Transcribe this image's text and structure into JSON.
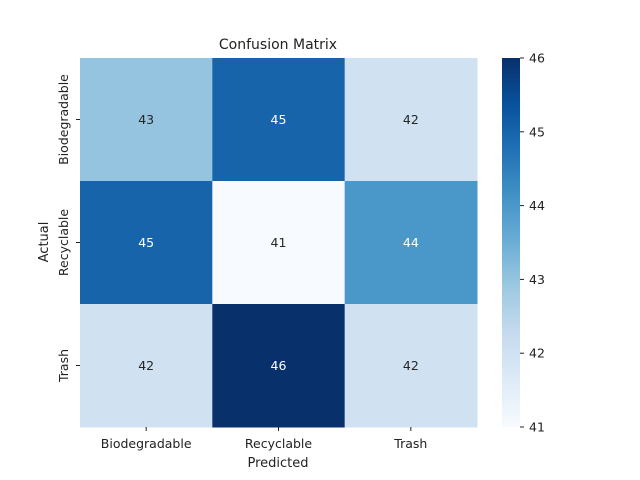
{
  "chart_data": {
    "type": "heatmap",
    "title": "Confusion Matrix",
    "xlabel": "Predicted",
    "ylabel": "Actual",
    "x_categories": [
      "Biodegradable",
      "Recyclable",
      "Trash"
    ],
    "y_categories": [
      "Biodegradable",
      "Recyclable",
      "Trash"
    ],
    "values": [
      [
        43,
        45,
        42
      ],
      [
        45,
        41,
        44
      ],
      [
        42,
        46,
        42
      ]
    ],
    "colormap": "Blues",
    "vmin": 41,
    "vmax": 46,
    "colorbar_ticks": [
      41,
      42,
      43,
      44,
      45,
      46
    ],
    "annotated": true,
    "grid": false
  }
}
